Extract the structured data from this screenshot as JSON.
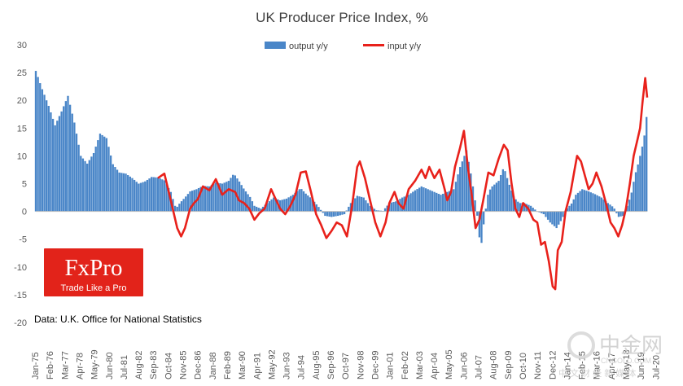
{
  "chart_data": {
    "type": "bar",
    "title": "UK Producer Price Index, %",
    "xlabel": "",
    "ylabel": "",
    "ylim": [
      -20,
      30
    ],
    "yticks": [
      30,
      25,
      20,
      15,
      10,
      5,
      0,
      -5,
      -10,
      -15,
      -20
    ],
    "x_range": [
      "Jan-75",
      "Feb-22"
    ],
    "x_tick_labels": [
      "Jan-75",
      "Feb-76",
      "Mar-77",
      "Apr-78",
      "May-79",
      "Jun-80",
      "Jul-81",
      "Aug-82",
      "Sep-83",
      "Oct-84",
      "Nov-85",
      "Dec-86",
      "Jan-88",
      "Feb-89",
      "Mar-90",
      "Apr-91",
      "May-92",
      "Jun-93",
      "Jul-94",
      "Aug-95",
      "Sep-96",
      "Oct-97",
      "Nov-98",
      "Dec-99",
      "Jan-01",
      "Feb-02",
      "Mar-03",
      "Apr-04",
      "May-05",
      "Jun-06",
      "Jul-07",
      "Aug-08",
      "Sep-09",
      "Oct-10",
      "Nov-11",
      "Dec-12",
      "Jan-14",
      "Feb-15",
      "Mar-16",
      "Apr-17",
      "May-18",
      "Jun-19",
      "Jul-20"
    ],
    "legend": {
      "position": "top"
    },
    "grid": false,
    "series": [
      {
        "name": "output y/y",
        "type": "bar",
        "color": "#4a86c8",
        "points": [
          [
            1975.0,
            25.3
          ],
          [
            1975.5,
            22.0
          ],
          [
            1976.0,
            19.0
          ],
          [
            1976.5,
            15.5
          ],
          [
            1977.0,
            18.0
          ],
          [
            1977.5,
            20.8
          ],
          [
            1978.0,
            16.0
          ],
          [
            1978.5,
            10.0
          ],
          [
            1979.0,
            8.6
          ],
          [
            1979.5,
            10.5
          ],
          [
            1980.0,
            14.0
          ],
          [
            1980.5,
            13.2
          ],
          [
            1981.0,
            8.5
          ],
          [
            1981.5,
            7.0
          ],
          [
            1982.0,
            6.8
          ],
          [
            1982.5,
            6.0
          ],
          [
            1983.0,
            5.0
          ],
          [
            1983.5,
            5.4
          ],
          [
            1984.0,
            6.2
          ],
          [
            1984.5,
            6.1
          ],
          [
            1985.0,
            5.6
          ],
          [
            1985.5,
            3.5
          ],
          [
            1985.9,
            0.5
          ],
          [
            1986.2,
            1.5
          ],
          [
            1986.6,
            2.5
          ],
          [
            1987.0,
            3.6
          ],
          [
            1987.5,
            4.0
          ],
          [
            1988.0,
            4.6
          ],
          [
            1988.5,
            4.5
          ],
          [
            1989.0,
            5.2
          ],
          [
            1989.5,
            5.0
          ],
          [
            1990.0,
            5.5
          ],
          [
            1990.4,
            6.8
          ],
          [
            1990.8,
            5.5
          ],
          [
            1991.2,
            4.0
          ],
          [
            1991.7,
            2.5
          ],
          [
            1992.0,
            1.0
          ],
          [
            1992.5,
            0.5
          ],
          [
            1993.0,
            1.5
          ],
          [
            1993.5,
            2.5
          ],
          [
            1994.0,
            2.0
          ],
          [
            1994.5,
            2.3
          ],
          [
            1995.0,
            3.0
          ],
          [
            1995.6,
            4.2
          ],
          [
            1996.0,
            3.2
          ],
          [
            1996.5,
            2.2
          ],
          [
            1997.0,
            0.8
          ],
          [
            1997.5,
            -0.8
          ],
          [
            1998.0,
            -1.0
          ],
          [
            1998.5,
            -0.8
          ],
          [
            1999.0,
            -0.5
          ],
          [
            1999.5,
            1.5
          ],
          [
            2000.0,
            2.8
          ],
          [
            2000.5,
            2.5
          ],
          [
            2001.0,
            1.0
          ],
          [
            2001.5,
            0.2
          ],
          [
            2002.0,
            0.1
          ],
          [
            2002.5,
            1.5
          ],
          [
            2003.0,
            1.8
          ],
          [
            2003.5,
            2.5
          ],
          [
            2004.0,
            3.0
          ],
          [
            2004.5,
            3.8
          ],
          [
            2005.0,
            4.5
          ],
          [
            2005.5,
            4.0
          ],
          [
            2006.0,
            3.5
          ],
          [
            2006.5,
            3.0
          ],
          [
            2007.0,
            3.5
          ],
          [
            2007.5,
            4.0
          ],
          [
            2008.0,
            8.0
          ],
          [
            2008.5,
            11.0
          ],
          [
            2008.9,
            6.0
          ],
          [
            2009.3,
            0.0
          ],
          [
            2009.6,
            -7.0
          ],
          [
            2009.9,
            -1.0
          ],
          [
            2010.2,
            3.5
          ],
          [
            2010.5,
            4.5
          ],
          [
            2011.0,
            5.5
          ],
          [
            2011.4,
            8.0
          ],
          [
            2011.8,
            5.0
          ],
          [
            2012.2,
            2.5
          ],
          [
            2012.6,
            1.5
          ],
          [
            2013.0,
            1.5
          ],
          [
            2013.5,
            1.0
          ],
          [
            2014.0,
            0.0
          ],
          [
            2014.5,
            -0.5
          ],
          [
            2015.0,
            -2.0
          ],
          [
            2015.5,
            -3.0
          ],
          [
            2015.9,
            -1.5
          ],
          [
            2016.3,
            0.5
          ],
          [
            2016.7,
            1.5
          ],
          [
            2017.0,
            3.0
          ],
          [
            2017.5,
            4.0
          ],
          [
            2018.0,
            3.6
          ],
          [
            2018.5,
            3.1
          ],
          [
            2019.0,
            2.5
          ],
          [
            2019.5,
            1.5
          ],
          [
            2019.8,
            1.0
          ],
          [
            2020.0,
            0.5
          ],
          [
            2020.3,
            -1.0
          ],
          [
            2020.7,
            -0.8
          ],
          [
            2021.0,
            1.0
          ],
          [
            2021.3,
            3.0
          ],
          [
            2021.6,
            6.5
          ],
          [
            2021.9,
            9.0
          ],
          [
            2022.2,
            12.0
          ],
          [
            2022.4,
            14.5
          ],
          [
            2022.5,
            17.0
          ]
        ]
      },
      {
        "name": "input y/y",
        "type": "line",
        "color": "#e8211b",
        "points": [
          [
            1984.5,
            6.0
          ],
          [
            1985.0,
            6.8
          ],
          [
            1985.5,
            2.0
          ],
          [
            1986.0,
            -3.0
          ],
          [
            1986.3,
            -4.5
          ],
          [
            1986.6,
            -3.0
          ],
          [
            1987.0,
            0.5
          ],
          [
            1987.3,
            1.5
          ],
          [
            1987.6,
            2.2
          ],
          [
            1988.0,
            4.5
          ],
          [
            1988.5,
            3.8
          ],
          [
            1989.0,
            5.8
          ],
          [
            1989.5,
            3.0
          ],
          [
            1990.0,
            4.0
          ],
          [
            1990.5,
            3.5
          ],
          [
            1990.8,
            2.0
          ],
          [
            1991.2,
            1.5
          ],
          [
            1991.6,
            0.5
          ],
          [
            1992.0,
            -1.5
          ],
          [
            1992.4,
            -0.3
          ],
          [
            1992.8,
            0.5
          ],
          [
            1993.3,
            4.0
          ],
          [
            1993.7,
            2.0
          ],
          [
            1994.0,
            0.5
          ],
          [
            1994.4,
            -0.5
          ],
          [
            1994.8,
            1.0
          ],
          [
            1995.2,
            3.0
          ],
          [
            1995.6,
            7.0
          ],
          [
            1996.0,
            7.2
          ],
          [
            1996.4,
            3.5
          ],
          [
            1996.8,
            -0.5
          ],
          [
            1997.2,
            -2.5
          ],
          [
            1997.6,
            -4.8
          ],
          [
            1998.0,
            -3.5
          ],
          [
            1998.4,
            -2.0
          ],
          [
            1998.8,
            -2.5
          ],
          [
            1999.2,
            -4.5
          ],
          [
            1999.6,
            1.0
          ],
          [
            2000.0,
            8.0
          ],
          [
            2000.2,
            9.0
          ],
          [
            2000.6,
            6.0
          ],
          [
            2001.0,
            2.0
          ],
          [
            2001.4,
            -2.0
          ],
          [
            2001.8,
            -4.5
          ],
          [
            2002.2,
            -2.0
          ],
          [
            2002.5,
            1.5
          ],
          [
            2002.9,
            3.5
          ],
          [
            2003.2,
            1.5
          ],
          [
            2003.6,
            0.5
          ],
          [
            2004.0,
            4.0
          ],
          [
            2004.5,
            5.5
          ],
          [
            2005.0,
            7.5
          ],
          [
            2005.3,
            6.0
          ],
          [
            2005.6,
            8.0
          ],
          [
            2006.0,
            6.0
          ],
          [
            2006.4,
            7.5
          ],
          [
            2006.8,
            4.0
          ],
          [
            2007.0,
            2.0
          ],
          [
            2007.3,
            3.5
          ],
          [
            2007.6,
            8.0
          ],
          [
            2008.0,
            11.5
          ],
          [
            2008.3,
            14.5
          ],
          [
            2008.6,
            8.0
          ],
          [
            2008.9,
            3.0
          ],
          [
            2009.2,
            -3.0
          ],
          [
            2009.5,
            -1.5
          ],
          [
            2009.8,
            2.0
          ],
          [
            2010.2,
            7.0
          ],
          [
            2010.6,
            6.5
          ],
          [
            2011.0,
            9.5
          ],
          [
            2011.4,
            12.0
          ],
          [
            2011.7,
            11.0
          ],
          [
            2012.0,
            5.0
          ],
          [
            2012.3,
            0.5
          ],
          [
            2012.6,
            -1.0
          ],
          [
            2012.9,
            1.5
          ],
          [
            2013.3,
            0.5
          ],
          [
            2013.7,
            -1.5
          ],
          [
            2014.0,
            -2.0
          ],
          [
            2014.3,
            -6.0
          ],
          [
            2014.6,
            -5.5
          ],
          [
            2014.9,
            -9.0
          ],
          [
            2015.2,
            -13.5
          ],
          [
            2015.4,
            -14.0
          ],
          [
            2015.6,
            -7.0
          ],
          [
            2015.9,
            -5.5
          ],
          [
            2016.2,
            0.0
          ],
          [
            2016.6,
            3.5
          ],
          [
            2016.9,
            7.5
          ],
          [
            2017.1,
            10.0
          ],
          [
            2017.4,
            9.0
          ],
          [
            2017.7,
            6.5
          ],
          [
            2018.0,
            4.0
          ],
          [
            2018.3,
            5.0
          ],
          [
            2018.6,
            7.0
          ],
          [
            2019.0,
            4.5
          ],
          [
            2019.4,
            1.0
          ],
          [
            2019.7,
            -2.0
          ],
          [
            2020.0,
            -3.0
          ],
          [
            2020.3,
            -4.5
          ],
          [
            2020.6,
            -2.5
          ],
          [
            2020.9,
            0.5
          ],
          [
            2021.2,
            5.0
          ],
          [
            2021.5,
            10.0
          ],
          [
            2021.8,
            13.0
          ],
          [
            2022.0,
            15.0
          ],
          [
            2022.2,
            20.0
          ],
          [
            2022.4,
            24.0
          ],
          [
            2022.55,
            20.5
          ]
        ]
      }
    ],
    "source_note": "Data: U.K. Office for National Statistics"
  },
  "logo": {
    "name": "FxPro",
    "tagline": "Trade Like a Pro",
    "color": "#e2231a"
  },
  "watermark": {
    "name": "中金网",
    "url": "CNGOLD.COM",
    "sub": "中 文 财 经 新 媒 体"
  }
}
